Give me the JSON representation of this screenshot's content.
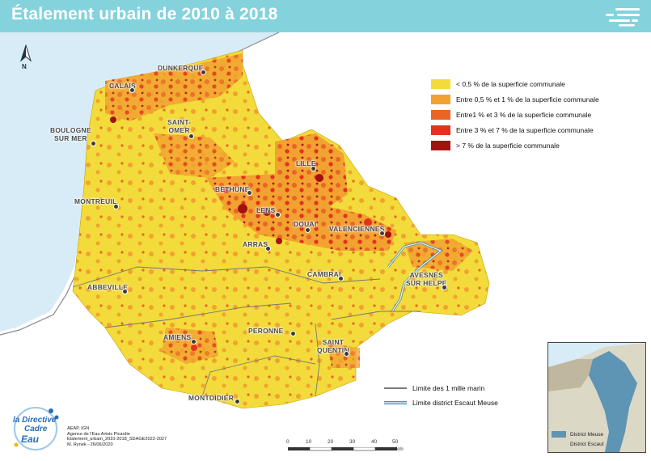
{
  "header": {
    "title": "Étalement urbain de 2010 à 2018",
    "background_color": "#84d2dc",
    "menu_icon": "menu-lines-icon"
  },
  "north_arrow": {
    "label": "N"
  },
  "legend": {
    "items": [
      {
        "label": "< 0,5 % de la superficie communale",
        "color": "#f2db3a"
      },
      {
        "label": "Entre 0,5 % et 1 % de la superficie communale",
        "color": "#f2a230"
      },
      {
        "label": "Entre1 % et 3 % de la superficie communale",
        "color": "#ea6525"
      },
      {
        "label": "Entre 3 % et 7 % de la superficie communale",
        "color": "#e3321e"
      },
      {
        "label": "> 7 % de la superficie communale",
        "color": "#a3120f"
      }
    ],
    "lines": [
      {
        "label": "Limite des 1 mille marin",
        "color": "#7a7a7a"
      },
      {
        "label": "Limite district Escaut Meuse",
        "color": "#4a8fb0"
      }
    ]
  },
  "cities": [
    {
      "name": "DUNKERQUE"
    },
    {
      "name": "CALAIS"
    },
    {
      "name": "BOULOGNE\nSUR MER"
    },
    {
      "name": "SAINT-\nOMER"
    },
    {
      "name": "LILLE"
    },
    {
      "name": "BETHUNE"
    },
    {
      "name": "MONTREUIL"
    },
    {
      "name": "LENS"
    },
    {
      "name": "DOUAI"
    },
    {
      "name": "VALENCIENNES"
    },
    {
      "name": "ARRAS"
    },
    {
      "name": "CAMBRAI"
    },
    {
      "name": "AVESNES\nSUR HELPE"
    },
    {
      "name": "ABBEVILLE"
    },
    {
      "name": "PERONNE"
    },
    {
      "name": "AMIENS"
    },
    {
      "name": "SAINT\nQUENTIN"
    },
    {
      "name": "MONTDIDIER"
    }
  ],
  "logo": {
    "line1": "la Directive",
    "line2": "Cadre",
    "line3": "Eau"
  },
  "credits": [
    "AEAP, IGN",
    "Agence de l'Eau Artois Picardie",
    "Etalement_urbain_2010-2018_SDAGE2022-2027",
    "M. Rynek - 26/06/2020"
  ],
  "scalebar": {
    "ticks": [
      "0",
      "10",
      "20",
      "30",
      "40",
      "50"
    ],
    "unit": "km"
  },
  "inset": {
    "legend": [
      {
        "label": "District Meuse",
        "color": "#5e94b4"
      },
      {
        "label": "District Escaut",
        "color": "#dcd8c6"
      }
    ]
  },
  "colors": {
    "sea": "#d8ecf7",
    "land_base": "#f2db3a"
  }
}
